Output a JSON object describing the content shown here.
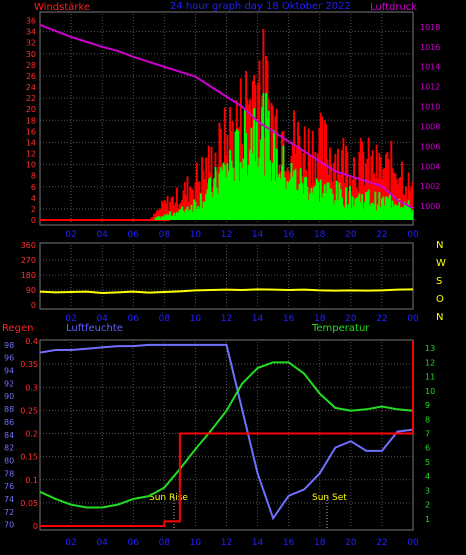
{
  "top_panel": {
    "left_label": "Windstärke",
    "title": "24 hour graph day  18 Oktober 2022",
    "right_label": "Luftdruck",
    "left_ticks": [
      "0",
      "2",
      "4",
      "6",
      "8",
      "10",
      "12",
      "14",
      "16",
      "18",
      "20",
      "22",
      "24",
      "26",
      "28",
      "30",
      "32",
      "34",
      "36"
    ],
    "right_ticks": [
      "1000",
      "1002",
      "1004",
      "1006",
      "1008",
      "1010",
      "1012",
      "1014",
      "1016",
      "1018"
    ],
    "x_ticks": [
      "02",
      "04",
      "06",
      "08",
      "10",
      "12",
      "14",
      "16",
      "18",
      "20",
      "22",
      "00"
    ]
  },
  "direction_panel": {
    "left_ticks": [
      "0",
      "90",
      "180",
      "270",
      "360"
    ],
    "right_labels": [
      "N",
      "W",
      "S",
      "O",
      "N"
    ],
    "x_ticks": [
      "02",
      "04",
      "06",
      "08",
      "10",
      "12",
      "14",
      "16",
      "18",
      "20",
      "22",
      "00"
    ]
  },
  "bottom_panel": {
    "left_title": "Regen",
    "mid_title": "Luftfeuchte",
    "right_title": "Temperatur",
    "regen_ticks": [
      "0",
      "0.05",
      "0.1",
      "0.15",
      "0.2",
      "0.25",
      "0.3",
      "0.35",
      "0.4"
    ],
    "humidity_ticks": [
      "70",
      "72",
      "74",
      "76",
      "78",
      "80",
      "82",
      "84",
      "86",
      "88",
      "90",
      "92",
      "94",
      "96",
      "98"
    ],
    "temp_ticks": [
      "1",
      "2",
      "3",
      "4",
      "5",
      "6",
      "7",
      "8",
      "9",
      "10",
      "11",
      "12",
      "13"
    ],
    "x_ticks": [
      "02",
      "04",
      "06",
      "08",
      "10",
      "12",
      "14",
      "16",
      "18",
      "20",
      "22",
      "00"
    ],
    "sunrise_label": "Sun Rise",
    "sunset_label": "Sun Set"
  },
  "colors": {
    "wind_gust": "#ff0000",
    "wind_avg": "#00ff00",
    "pressure": "#cc00cc",
    "direction": "#ffff00",
    "rain": "#ff0000",
    "humidity": "#7070ff",
    "temperature": "#22dd22",
    "axis_left": "#ff3030",
    "axis_right": "#cc00cc",
    "axis_blue": "#2020ff",
    "grid": "#555555"
  },
  "chart_data": [
    {
      "type": "bar",
      "title": "24 hour graph day  18 Oktober 2022",
      "ylabel": "Windstärke",
      "y2label": "Luftdruck",
      "x": [
        0,
        1,
        2,
        3,
        4,
        5,
        6,
        7,
        8,
        9,
        10,
        11,
        12,
        13,
        14,
        15,
        16,
        17,
        18,
        19,
        20,
        21,
        22,
        23,
        24
      ],
      "ylim": [
        0,
        37
      ],
      "y2lim": [
        998.6,
        1019.2
      ],
      "series": [
        {
          "name": "Windstärke",
          "values": [
            0,
            0,
            0,
            0,
            0,
            0,
            0,
            0,
            4,
            6,
            10,
            14,
            20,
            26,
            36,
            24,
            20,
            18,
            18,
            16,
            14,
            14,
            12,
            14,
            6
          ]
        },
        {
          "name": "Wind average",
          "values": [
            0,
            0,
            0,
            0,
            0,
            0,
            0,
            0,
            1,
            2,
            4,
            7,
            12,
            16,
            24,
            14,
            10,
            8,
            7,
            6,
            5,
            5,
            4,
            5,
            2
          ]
        },
        {
          "name": "Luftdruck",
          "values": [
            1018.2,
            1017.6,
            1017.0,
            1016.5,
            1016.0,
            1015.6,
            1015.0,
            1014.5,
            1014.0,
            1013.5,
            1013.0,
            1012.0,
            1011.0,
            1010.0,
            1008.5,
            1007.5,
            1006.5,
            1005.5,
            1004.5,
            1003.5,
            1003.0,
            1002.5,
            1002.0,
            1000.6,
            999.8
          ]
        }
      ]
    },
    {
      "type": "line",
      "x": [
        0,
        1,
        2,
        3,
        4,
        5,
        6,
        7,
        8,
        9,
        10,
        11,
        12,
        13,
        14,
        15,
        16,
        17,
        18,
        19,
        20,
        21,
        22,
        23,
        24
      ],
      "ylim": [
        0,
        360
      ],
      "series": [
        {
          "name": "Windrichtung",
          "values": [
            80,
            76,
            78,
            80,
            72,
            76,
            80,
            74,
            78,
            82,
            88,
            90,
            92,
            90,
            94,
            92,
            90,
            92,
            88,
            86,
            88,
            86,
            88,
            92,
            94
          ]
        }
      ]
    },
    {
      "type": "line",
      "x": [
        0,
        1,
        2,
        3,
        4,
        5,
        6,
        7,
        8,
        9,
        10,
        11,
        12,
        13,
        14,
        15,
        16,
        17,
        18,
        19,
        20,
        21,
        22,
        23,
        24
      ],
      "series": [
        {
          "name": "Regen",
          "values": [
            0,
            0,
            0,
            0,
            0,
            0,
            0,
            0,
            0.01,
            0.2,
            0.2,
            0.2,
            0.2,
            0.2,
            0.2,
            0.2,
            0.2,
            0.2,
            0.2,
            0.2,
            0.2,
            0.2,
            0.2,
            0.2,
            0.4
          ]
        },
        {
          "name": "Luftfeuchte",
          "values": [
            96.8,
            97.2,
            97.2,
            97.4,
            97.6,
            97.8,
            97.8,
            98.0,
            98.0,
            98.0,
            98.0,
            98.0,
            98.0,
            88.0,
            78.0,
            71.0,
            74.5,
            75.5,
            78.0,
            82.0,
            83.0,
            81.5,
            81.5,
            84.5,
            84.8
          ]
        },
        {
          "name": "Temperatur",
          "values": [
            2.9,
            2.4,
            2.0,
            1.8,
            1.8,
            2.0,
            2.4,
            2.6,
            3.2,
            4.5,
            5.9,
            7.2,
            8.6,
            10.5,
            11.6,
            12.0,
            12.0,
            11.2,
            9.8,
            8.8,
            8.6,
            8.7,
            8.9,
            8.7,
            8.6
          ]
        }
      ],
      "ylim_regen": [
        0,
        0.4
      ],
      "ylim_humidity": [
        69.8,
        98.6
      ],
      "ylim_temperature": [
        0.5,
        13.5
      ],
      "annotations": [
        "Sun Rise",
        "Sun Set"
      ]
    }
  ]
}
